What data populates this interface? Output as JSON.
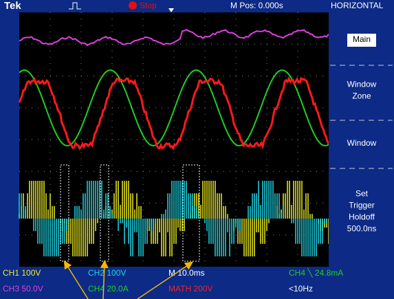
{
  "header": {
    "brand": "Tek",
    "status": "Stop",
    "position": "M Pos: 0.000s",
    "menu_title": "HORIZONTAL"
  },
  "menu": [
    {
      "lines": [
        "Main"
      ]
    },
    {
      "lines": [
        "Window",
        "Zone"
      ]
    },
    {
      "lines": [
        "Window"
      ]
    },
    {
      "lines": [
        "Set",
        "Trigger",
        "Holdoff",
        "500.0ns"
      ]
    }
  ],
  "status_bar": {
    "row1": [
      "CH1  100V",
      "CH2  100V",
      "M 10.0ms",
      "CH4 ╲ 24.8mA"
    ],
    "row2": [
      "CH3  50.0V",
      "CH4  20.0A",
      "MATH 200V",
      "<10Hz"
    ]
  }
}
